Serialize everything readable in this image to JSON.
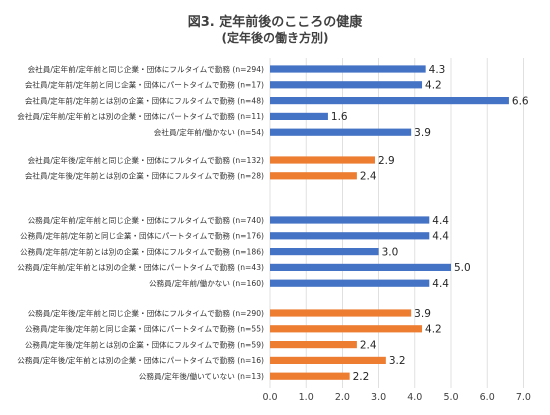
{
  "chart_data": {
    "type": "bar",
    "orientation": "horizontal",
    "title": "図3. 定年前後のこころの健康",
    "subtitle": "(定年後の働き方別)",
    "xlim": [
      0,
      7
    ],
    "xticks": [
      "0.0",
      "1.0",
      "2.0",
      "3.0",
      "4.0",
      "5.0",
      "6.0",
      "7.0"
    ],
    "grid": true,
    "colors": {
      "blue": "#4472c4",
      "orange": "#ed7d31"
    },
    "groups": [
      {
        "color": "blue",
        "items": [
          {
            "label": "会社員/定年前/定年前と同じ企業・団体にフルタイムで勤務 (n=294)",
            "value": 4.3,
            "value_label": "4.3"
          },
          {
            "label": "会社員/定年前/定年前と同じ企業・団体にパートタイムで勤務 (n=17)",
            "value": 4.2,
            "value_label": "4.2"
          },
          {
            "label": "会社員/定年前/定年前とは別の企業・団体にフルタイムで勤務 (n=48)",
            "value": 6.6,
            "value_label": "6.6"
          },
          {
            "label": "会社員/定年前/定年前とは別の企業・団体にパートタイムで勤務 (n=11)",
            "value": 1.6,
            "value_label": "1.6"
          },
          {
            "label": "会社員/定年前/働かない (n=54)",
            "value": 3.9,
            "value_label": "3.9"
          }
        ]
      },
      {
        "color": "orange",
        "items": [
          {
            "label": "会社員/定年後/定年前と同じ企業・団体にフルタイムで勤務 (n=132)",
            "value": 2.9,
            "value_label": "2.9"
          },
          {
            "label": "会社員/定年後/定年前とは別の企業・団体にフルタイムで勤務 (n=28)",
            "value": 2.4,
            "value_label": "2.4"
          }
        ]
      },
      {
        "color": "blue",
        "items": [
          {
            "label": "公務員/定年前/定年前と同じ企業・団体にフルタイムで勤務 (n=740)",
            "value": 4.4,
            "value_label": "4.4"
          },
          {
            "label": "公務員/定年前/定年前と同じ企業・団体にパートタイムで勤務 (n=176)",
            "value": 4.4,
            "value_label": "4.4"
          },
          {
            "label": "公務員/定年前/定年前とは別の企業・団体にフルタイムで勤務 (n=186)",
            "value": 3.0,
            "value_label": "3.0"
          },
          {
            "label": "公務員/定年前/定年前とは別の企業・団体にパートタイムで勤務 (n=43)",
            "value": 5.0,
            "value_label": "5.0"
          },
          {
            "label": "公務員/定年前/働かない (n=160)",
            "value": 4.4,
            "value_label": "4.4"
          }
        ]
      },
      {
        "color": "orange",
        "items": [
          {
            "label": "公務員/定年後/定年前と同じ企業・団体にフルタイムで勤務 (n=290)",
            "value": 3.9,
            "value_label": "3.9"
          },
          {
            "label": "公務員/定年後/定年前と同じ企業・団体にパートタイムで勤務 (n=55)",
            "value": 4.2,
            "value_label": "4.2"
          },
          {
            "label": "公務員/定年後/定年前とは別の企業・団体にフルタイムで勤務 (n=59)",
            "value": 2.4,
            "value_label": "2.4"
          },
          {
            "label": "公務員/定年後/定年前とは別の企業・団体にパートタイムで勤務 (n=16)",
            "value": 3.2,
            "value_label": "3.2"
          },
          {
            "label": "公務員/定年後/働いていない (n=13)",
            "value": 2.2,
            "value_label": "2.2"
          }
        ]
      }
    ]
  }
}
